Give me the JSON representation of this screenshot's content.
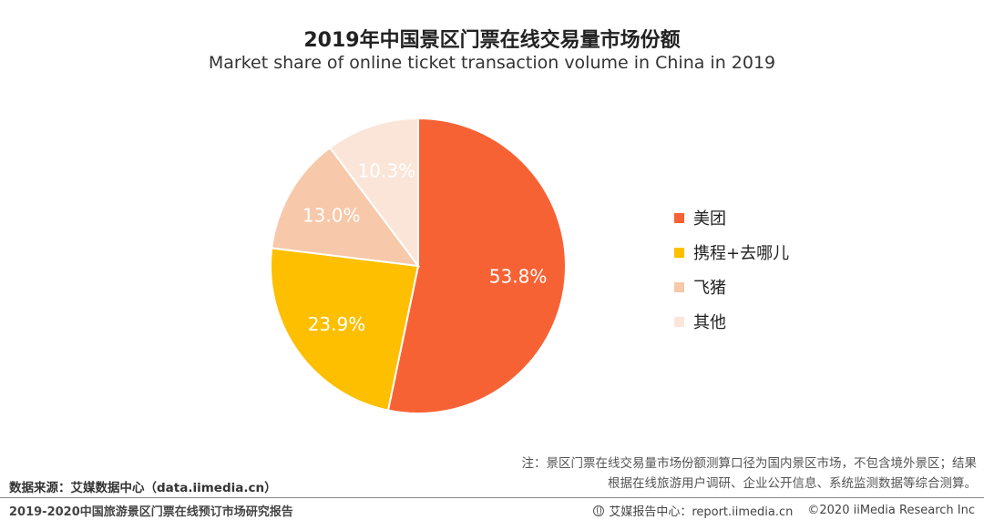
{
  "chart_data": {
    "type": "pie",
    "title": "2019年中国景区门票在线交易量市场份额",
    "subtitle": "Market share of online ticket transaction volume in China in 2019",
    "slices": [
      {
        "name": "美团",
        "value": 53.8,
        "label": "53.8%",
        "color": "#F76234"
      },
      {
        "name": "携程+去哪儿",
        "value": 23.9,
        "label": "23.9%",
        "color": "#FDBF00"
      },
      {
        "name": "飞猪",
        "value": 13.0,
        "label": "13.0%",
        "color": "#F7C8A9"
      },
      {
        "name": "其他",
        "value": 10.3,
        "label": "10.3%",
        "color": "#FBE5D9"
      }
    ],
    "start_angle_deg": 0,
    "direction": "clockwise",
    "legend_placement": "right"
  },
  "note": {
    "line1": "注：景区门票在线交易量市场份额测算口径为国内景区市场，不包含境外景区；结果",
    "line2": "根据在线旅游用户调研、企业公开信息、系统监测数据等综合测算。"
  },
  "source": "数据来源：艾媒数据中心（data.iimedia.cn）",
  "footer": {
    "report_title": "2019-2020中国旅游景区门票在线预订市场研究报告",
    "center_label": "艾媒报告中心：report.iimedia.cn",
    "copyright": "©2020  iiMedia Research  Inc"
  }
}
